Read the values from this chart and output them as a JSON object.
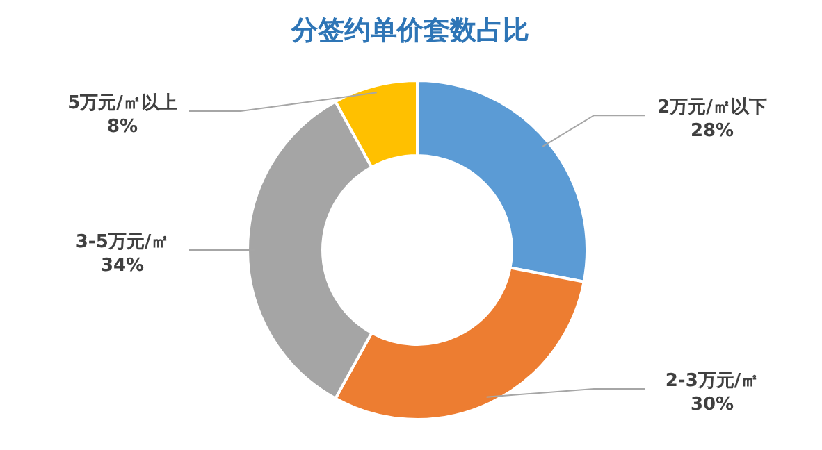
{
  "chart_data": {
    "type": "donut",
    "title": "分签约单价套数占比",
    "categories": [
      "2万元/㎡以下",
      "2-3万元/㎡",
      "3-5万元/㎡",
      "5万元/㎡以上"
    ],
    "values": [
      28,
      30,
      34,
      8
    ],
    "value_labels": [
      "28%",
      "30%",
      "34%",
      "8%"
    ],
    "colors": [
      "#5b9bd5",
      "#ed7d31",
      "#a5a5a5",
      "#ffc000"
    ]
  }
}
